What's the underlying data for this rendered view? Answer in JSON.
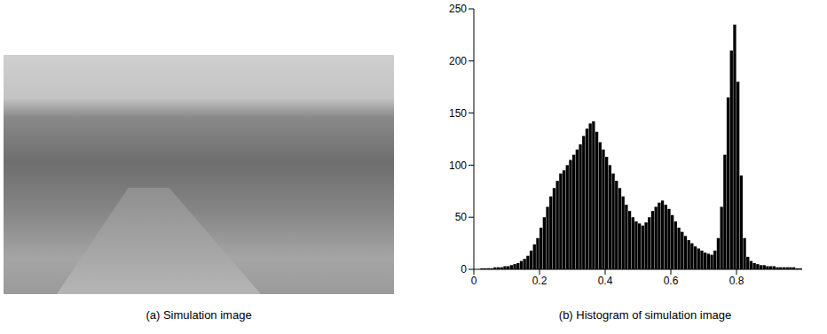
{
  "image": {
    "caption": "(a) Simulation image"
  },
  "chart_data": {
    "type": "histogram",
    "caption": "(b) Histogram of simulation image",
    "color": "#000000",
    "bins": [
      0,
      0.01,
      0.02,
      0.03,
      0.04,
      0.05,
      0.06,
      0.07,
      0.08,
      0.09,
      0.1,
      0.11,
      0.12,
      0.13,
      0.14,
      0.15,
      0.16,
      0.17,
      0.18,
      0.19,
      0.2,
      0.21,
      0.22,
      0.23,
      0.24,
      0.25,
      0.26,
      0.27,
      0.28,
      0.29,
      0.3,
      0.31,
      0.32,
      0.33,
      0.34,
      0.35,
      0.36,
      0.37,
      0.38,
      0.39,
      0.4,
      0.41,
      0.42,
      0.43,
      0.44,
      0.45,
      0.46,
      0.47,
      0.48,
      0.49,
      0.5,
      0.51,
      0.52,
      0.53,
      0.54,
      0.55,
      0.56,
      0.57,
      0.58,
      0.59,
      0.6,
      0.61,
      0.62,
      0.63,
      0.64,
      0.65,
      0.66,
      0.67,
      0.68,
      0.69,
      0.7,
      0.71,
      0.72,
      0.73,
      0.74,
      0.75,
      0.76,
      0.77,
      0.78,
      0.79,
      0.8,
      0.81,
      0.82,
      0.83,
      0.84,
      0.85,
      0.86,
      0.87,
      0.88,
      0.89,
      0.9,
      0.91,
      0.92,
      0.93,
      0.94,
      0.95,
      0.96,
      0.97,
      0.98,
      0.99,
      1
    ],
    "counts": [
      0,
      0,
      1,
      1,
      1,
      1,
      2,
      2,
      2,
      3,
      3,
      4,
      5,
      6,
      8,
      10,
      13,
      18,
      24,
      30,
      40,
      50,
      60,
      70,
      78,
      85,
      92,
      95,
      100,
      105,
      110,
      115,
      120,
      128,
      135,
      140,
      142,
      132,
      122,
      115,
      108,
      100,
      92,
      85,
      78,
      70,
      62,
      56,
      50,
      46,
      44,
      42,
      45,
      50,
      56,
      60,
      64,
      66,
      62,
      58,
      52,
      46,
      40,
      36,
      32,
      28,
      25,
      22,
      20,
      18,
      16,
      15,
      14,
      18,
      30,
      60,
      110,
      165,
      210,
      235,
      180,
      90,
      30,
      12,
      8,
      6,
      5,
      4,
      4,
      3,
      3,
      3,
      2,
      2,
      2,
      2,
      2,
      2,
      1,
      1
    ],
    "xlim": [
      0,
      1
    ],
    "xticks": [
      0,
      0.2,
      0.4,
      0.6,
      0.8
    ],
    "ylim": [
      0,
      250
    ],
    "yticks": [
      0,
      50,
      100,
      150,
      200,
      250
    ],
    "grid": false
  }
}
